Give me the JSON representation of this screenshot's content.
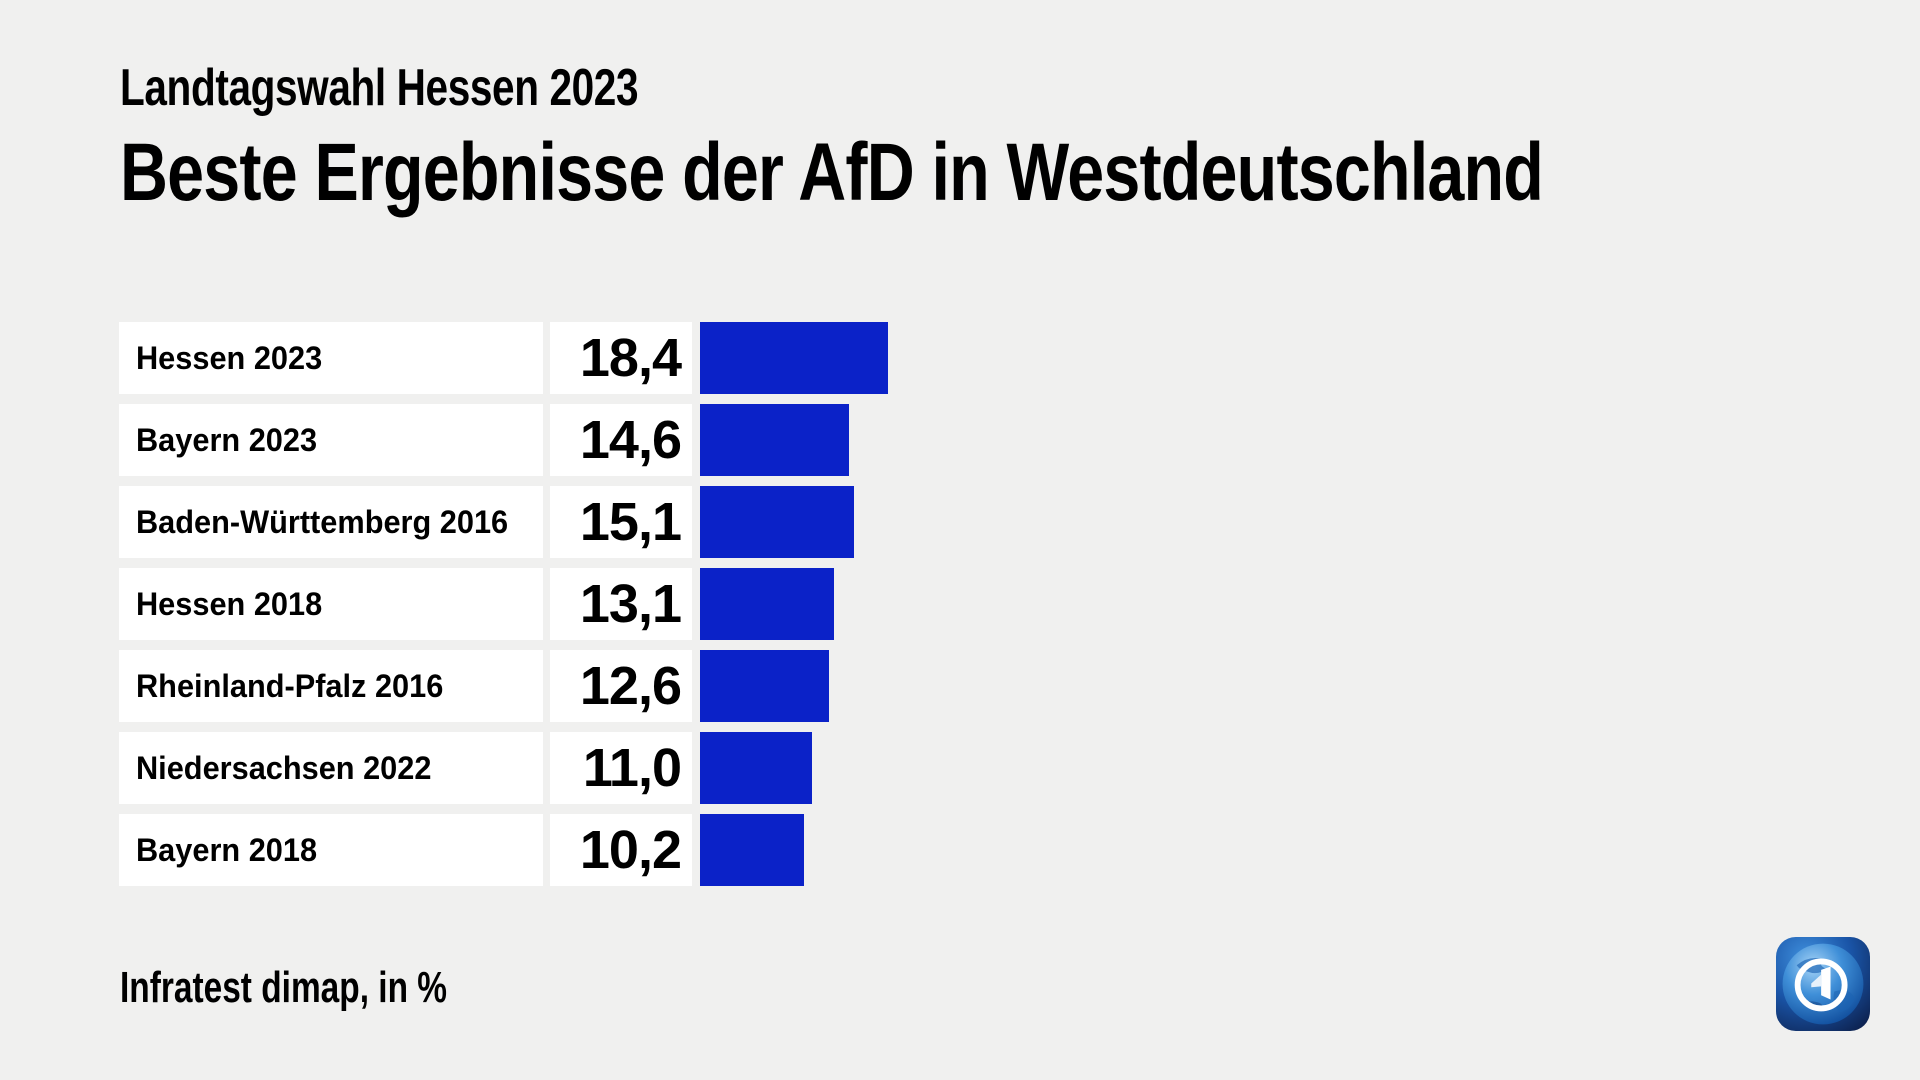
{
  "meta": {
    "background_color": "#f0f0ef",
    "card_color": "#ffffff",
    "text_color": "#000000"
  },
  "header": {
    "kicker": "Landtagswahl Hessen 2023",
    "title": "Beste Ergebnisse der AfD in Westdeutschland"
  },
  "chart_data": {
    "type": "bar",
    "orientation": "horizontal",
    "title": "Beste Ergebnisse der AfD in Westdeutschland",
    "subtitle": "Landtagswahl Hessen 2023",
    "unit": "%",
    "categories": [
      "Hessen 2023",
      "Bayern 2023",
      "Baden-Württemberg 2016",
      "Hessen 2018",
      "Rheinland-Pfalz 2016",
      "Niedersachsen 2022",
      "Bayern 2018"
    ],
    "values": [
      18.4,
      14.6,
      15.1,
      13.1,
      12.6,
      11.0,
      10.2
    ],
    "value_labels": [
      "18,4",
      "14,6",
      "15,1",
      "13,1",
      "12,6",
      "11,0",
      "10,2"
    ],
    "xlim": [
      0,
      20
    ],
    "grid": false,
    "legend": false,
    "bar_color": "#0b22c8",
    "source": "Infratest dimap"
  },
  "footer": {
    "source_note": "Infratest dimap, in %"
  },
  "logo": {
    "name": "ARD tagesschau",
    "glyph": "1"
  }
}
